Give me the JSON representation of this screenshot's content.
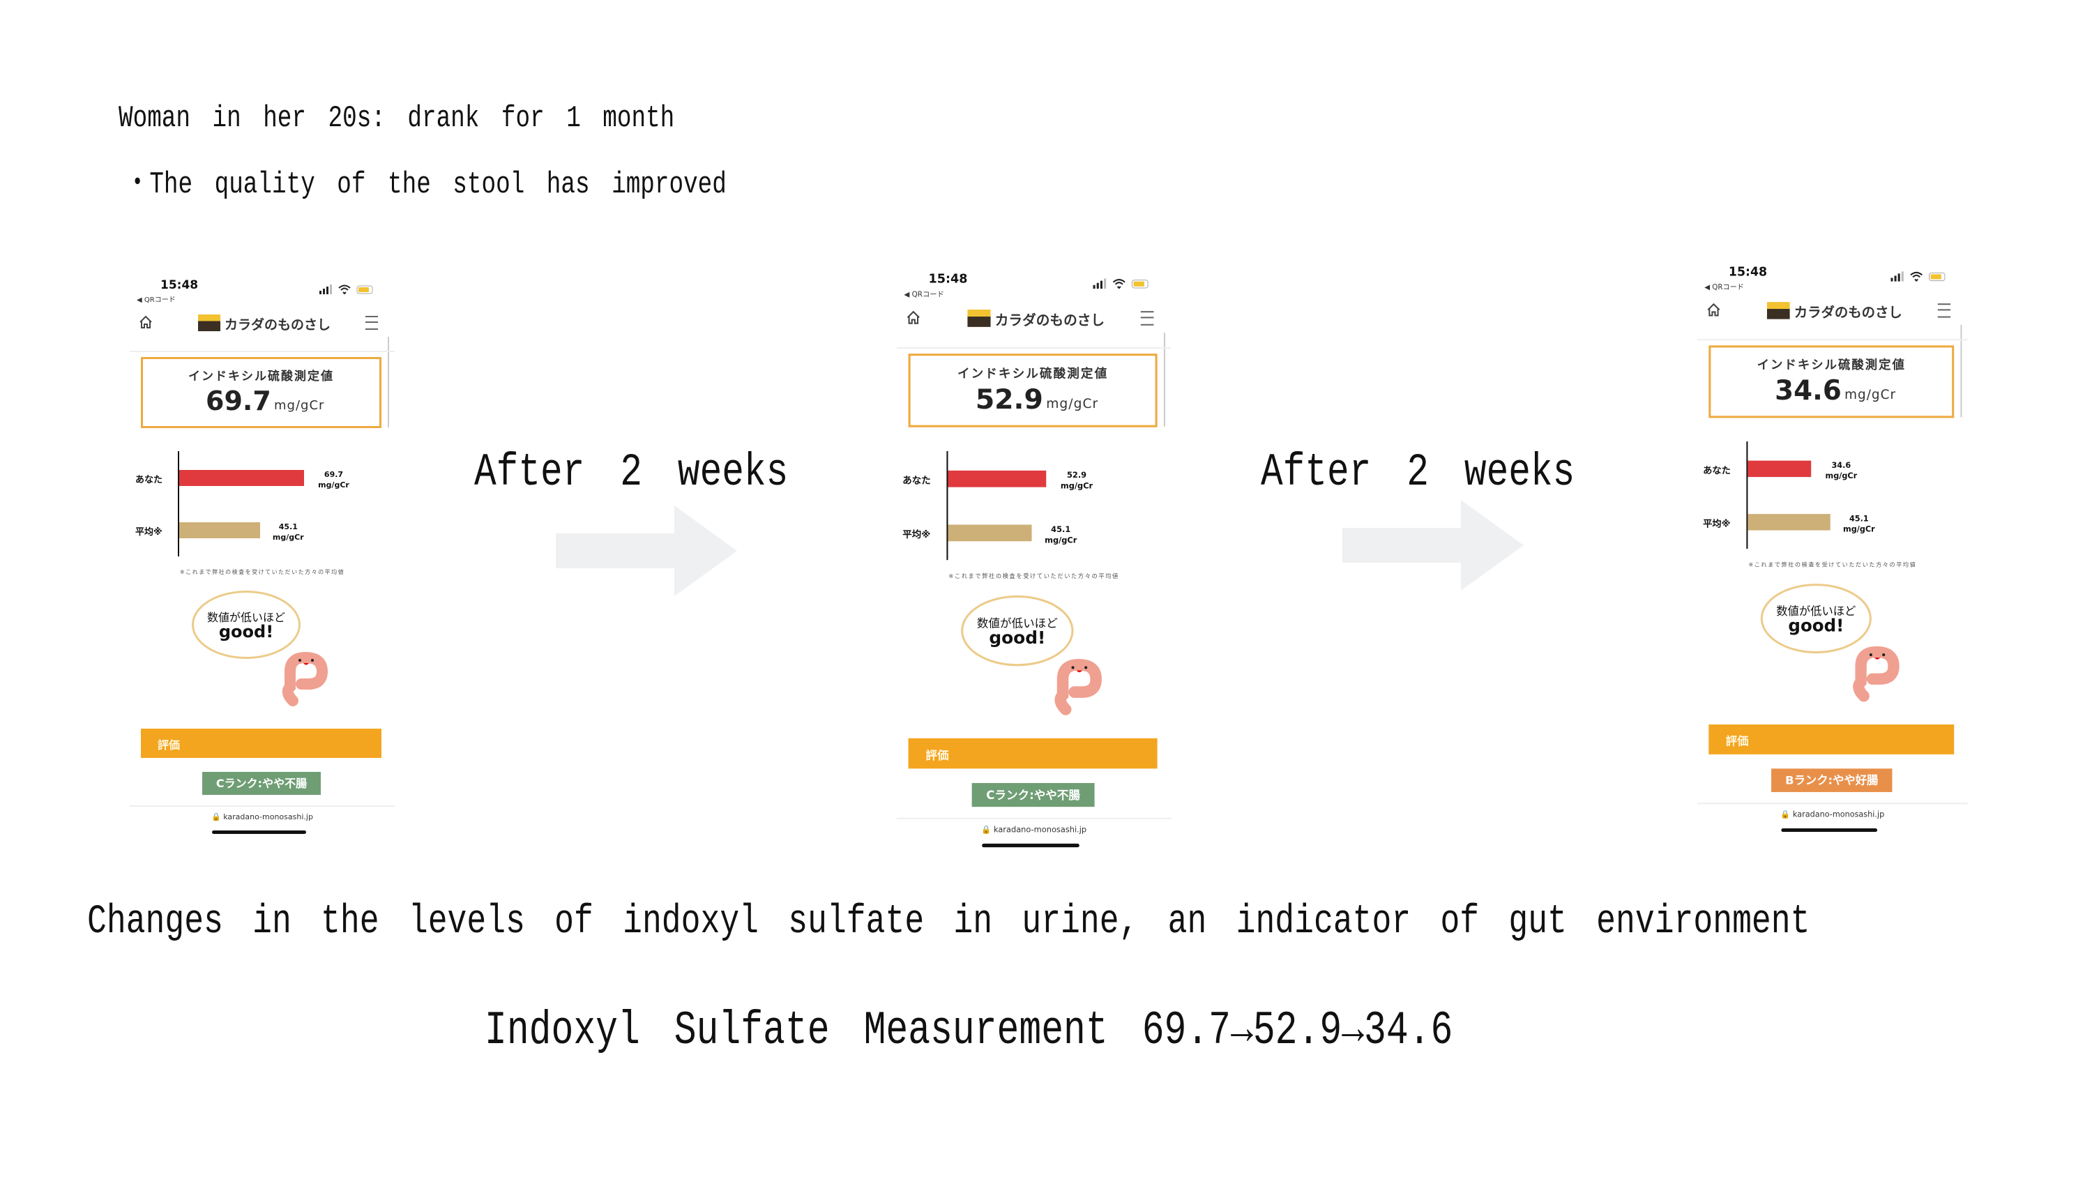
{
  "header": {
    "line1": "Woman in her 20s: drank for 1 month",
    "line2": "・The quality of the stool has improved"
  },
  "transitions": [
    {
      "label": "After 2 weeks",
      "icon": "arrow-right-icon"
    },
    {
      "label": "After 2 weeks",
      "icon": "arrow-right-icon"
    }
  ],
  "footer": {
    "line1": "Changes in the levels of indoxyl sulfate in urine, an indicator of gut environment",
    "line2": "Indoxyl Sulfate Measurement 69.7→52.9→34.6"
  },
  "colors": {
    "you_bar": "#e03a3e",
    "average_bar": "#cdb078",
    "eval_bar": "#f3a51f",
    "rank_c": "#6f9e74",
    "rank_b": "#e8904a",
    "box_border": "#eeaa40"
  },
  "phones": [
    {
      "time": "15:48",
      "back": "◀ QRコード",
      "brand": "カラダのものさし",
      "measure_label": "インドキシル硫酸測定値",
      "value": "69.7",
      "unit": "mg/gCr",
      "you_label": "あなた",
      "avg_label": "平均※",
      "you_value": 69.7,
      "avg_value": 45.1,
      "you_value_text": "69.7",
      "avg_value_text": "45.1",
      "bar_unit": "mg/gCr",
      "note": "※これまで弊社の検査を受けていただいた方々の平均値",
      "bubble_line1": "数値が低いほど",
      "bubble_line2": "good!",
      "eval_label": "評価",
      "rank": "Cランク:やや不腸",
      "rank_color": "#6f9e74",
      "url": "🔒 karadano-monosashi.jp"
    },
    {
      "time": "15:48",
      "back": "◀ QRコード",
      "brand": "カラダのものさし",
      "measure_label": "インドキシル硫酸測定値",
      "value": "52.9",
      "unit": "mg/gCr",
      "you_label": "あなた",
      "avg_label": "平均※",
      "you_value": 52.9,
      "avg_value": 45.1,
      "you_value_text": "52.9",
      "avg_value_text": "45.1",
      "bar_unit": "mg/gCr",
      "note": "※これまで弊社の検査を受けていただいた方々の平均値",
      "bubble_line1": "数値が低いほど",
      "bubble_line2": "good!",
      "eval_label": "評価",
      "rank": "Cランク:やや不腸",
      "rank_color": "#6f9e74",
      "url": "🔒 karadano-monosashi.jp"
    },
    {
      "time": "15:48",
      "back": "◀ QRコード",
      "brand": "カラダのものさし",
      "measure_label": "インドキシル硫酸測定値",
      "value": "34.6",
      "unit": "mg/gCr",
      "you_label": "あなた",
      "avg_label": "平均※",
      "you_value": 34.6,
      "avg_value": 45.1,
      "you_value_text": "34.6",
      "avg_value_text": "45.1",
      "bar_unit": "mg/gCr",
      "note": "※これまで弊社の検査を受けていただいた方々の平均値",
      "bubble_line1": "数値が低いほど",
      "bubble_line2": "good!",
      "eval_label": "評価",
      "rank": "Bランク:やや好腸",
      "rank_color": "#e8904a",
      "url": "🔒 karadano-monosashi.jp"
    }
  ]
}
